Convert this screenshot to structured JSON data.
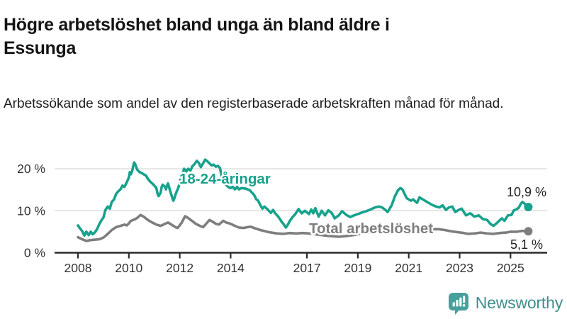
{
  "header": {
    "title": "Högre arbetslöshet bland unga än bland äldre i Essunga",
    "subtitle": "Arbetssökande som andel av den registerbaserade arbetskraften månad för månad."
  },
  "branding": {
    "label": "Newsworthy",
    "icon": "newsworthy-chart-bubble-icon",
    "icon_color": "#47a09c",
    "label_color": "#3e8e8b"
  },
  "chart_data": {
    "type": "line",
    "title": "Högre arbetslöshet bland unga än bland äldre i Essunga",
    "subtitle": "Arbetssökande som andel av den registerbaserade arbetskraften månad för månad.",
    "unit": "%",
    "grid": "horizontal",
    "grid_color": "#dcdcdc",
    "axis_color": "#2b2b2b",
    "tick_label_color": "#333333",
    "value_label_color": "#222222",
    "x_axis": {
      "range": [
        2008.0,
        2025.7
      ],
      "ticks": [
        2008,
        2010,
        2012,
        2014,
        2017,
        2019,
        2021,
        2023,
        2025
      ]
    },
    "y_axis": {
      "range": [
        0,
        23
      ],
      "ticks": [
        {
          "value": 0,
          "label": "0 %"
        },
        {
          "value": 10,
          "label": "10 %"
        },
        {
          "value": 20,
          "label": "20 %"
        }
      ]
    },
    "series": [
      {
        "id": "young",
        "name": "18-24-åringar",
        "color": "#17a28c",
        "end_value": 10.9,
        "end_label": "10,9 %",
        "points": [
          [
            2008.0,
            6.5
          ],
          [
            2008.08,
            5.8
          ],
          [
            2008.17,
            5.1
          ],
          [
            2008.25,
            4.1
          ],
          [
            2008.33,
            5.0
          ],
          [
            2008.42,
            4.2
          ],
          [
            2008.5,
            5.0
          ],
          [
            2008.58,
            4.4
          ],
          [
            2008.67,
            4.9
          ],
          [
            2008.75,
            5.6
          ],
          [
            2008.83,
            6.7
          ],
          [
            2008.92,
            7.7
          ],
          [
            2009.0,
            8.4
          ],
          [
            2009.08,
            10.2
          ],
          [
            2009.17,
            11.0
          ],
          [
            2009.25,
            10.5
          ],
          [
            2009.33,
            12.1
          ],
          [
            2009.42,
            12.7
          ],
          [
            2009.5,
            14.0
          ],
          [
            2009.58,
            14.6
          ],
          [
            2009.67,
            15.1
          ],
          [
            2009.75,
            16.0
          ],
          [
            2009.83,
            15.7
          ],
          [
            2009.92,
            16.8
          ],
          [
            2010.0,
            17.9
          ],
          [
            2010.04,
            19.2
          ],
          [
            2010.08,
            18.7
          ],
          [
            2010.13,
            19.5
          ],
          [
            2010.17,
            20.6
          ],
          [
            2010.21,
            21.5
          ],
          [
            2010.25,
            21.1
          ],
          [
            2010.33,
            19.8
          ],
          [
            2010.42,
            19.2
          ],
          [
            2010.5,
            19.0
          ],
          [
            2010.58,
            18.7
          ],
          [
            2010.67,
            18.4
          ],
          [
            2010.75,
            17.6
          ],
          [
            2010.83,
            17.0
          ],
          [
            2010.92,
            16.5
          ],
          [
            2011.0,
            16.0
          ],
          [
            2011.08,
            15.4
          ],
          [
            2011.13,
            14.0
          ],
          [
            2011.17,
            13.5
          ],
          [
            2011.25,
            14.3
          ],
          [
            2011.29,
            15.7
          ],
          [
            2011.33,
            16.2
          ],
          [
            2011.42,
            15.7
          ],
          [
            2011.46,
            15.1
          ],
          [
            2011.5,
            16.0
          ],
          [
            2011.54,
            16.5
          ],
          [
            2011.58,
            15.7
          ],
          [
            2011.63,
            14.6
          ],
          [
            2011.67,
            13.8
          ],
          [
            2011.71,
            13.0
          ],
          [
            2011.75,
            12.4
          ],
          [
            2011.79,
            13.0
          ],
          [
            2011.83,
            13.8
          ],
          [
            2011.88,
            14.6
          ],
          [
            2011.92,
            15.1
          ],
          [
            2011.96,
            15.8
          ],
          [
            2012.0,
            16.5
          ],
          [
            2012.04,
            17.9
          ],
          [
            2012.08,
            18.7
          ],
          [
            2012.13,
            19.2
          ],
          [
            2012.17,
            20.0
          ],
          [
            2012.21,
            19.7
          ],
          [
            2012.25,
            19.3
          ],
          [
            2012.33,
            20.0
          ],
          [
            2012.42,
            19.6
          ],
          [
            2012.5,
            20.6
          ],
          [
            2012.58,
            21.1
          ],
          [
            2012.67,
            21.9
          ],
          [
            2012.75,
            21.4
          ],
          [
            2012.83,
            20.4
          ],
          [
            2012.92,
            21.3
          ],
          [
            2013.0,
            22.2
          ],
          [
            2013.08,
            21.8
          ],
          [
            2013.17,
            21.3
          ],
          [
            2013.25,
            20.8
          ],
          [
            2013.33,
            21.0
          ],
          [
            2013.42,
            20.5
          ],
          [
            2013.5,
            20.7
          ],
          [
            2013.58,
            20.2
          ],
          [
            2013.67,
            17.6
          ],
          [
            2013.75,
            16.8
          ],
          [
            2013.83,
            16.1
          ],
          [
            2013.92,
            15.6
          ],
          [
            2014.0,
            15.4
          ],
          [
            2014.08,
            15.7
          ],
          [
            2014.17,
            15.1
          ],
          [
            2014.25,
            15.7
          ],
          [
            2014.33,
            15.1
          ],
          [
            2014.42,
            15.4
          ],
          [
            2014.58,
            15.3
          ],
          [
            2014.75,
            14.9
          ],
          [
            2014.92,
            13.8
          ],
          [
            2015.0,
            12.8
          ],
          [
            2015.08,
            12.4
          ],
          [
            2015.17,
            11.3
          ],
          [
            2015.25,
            10.5
          ],
          [
            2015.33,
            11.0
          ],
          [
            2015.42,
            10.5
          ],
          [
            2015.5,
            10.0
          ],
          [
            2015.58,
            9.5
          ],
          [
            2015.67,
            10.2
          ],
          [
            2015.75,
            9.4
          ],
          [
            2015.83,
            8.9
          ],
          [
            2015.92,
            8.2
          ],
          [
            2016.0,
            7.4
          ],
          [
            2016.08,
            6.8
          ],
          [
            2016.17,
            6.0
          ],
          [
            2016.25,
            6.7
          ],
          [
            2016.33,
            7.6
          ],
          [
            2016.42,
            8.4
          ],
          [
            2016.54,
            9.2
          ],
          [
            2016.67,
            10.4
          ],
          [
            2016.79,
            9.4
          ],
          [
            2016.92,
            10.0
          ],
          [
            2017.08,
            9.2
          ],
          [
            2017.17,
            10.3
          ],
          [
            2017.25,
            9.4
          ],
          [
            2017.33,
            10.6
          ],
          [
            2017.46,
            8.6
          ],
          [
            2017.58,
            10.0
          ],
          [
            2017.71,
            8.9
          ],
          [
            2017.84,
            10.1
          ],
          [
            2017.97,
            9.5
          ],
          [
            2018.09,
            8.2
          ],
          [
            2018.25,
            8.9
          ],
          [
            2018.38,
            9.9
          ],
          [
            2018.55,
            9.0
          ],
          [
            2018.7,
            8.5
          ],
          [
            2018.85,
            8.9
          ],
          [
            2019.0,
            9.2
          ],
          [
            2019.17,
            9.6
          ],
          [
            2019.33,
            9.9
          ],
          [
            2019.5,
            10.3
          ],
          [
            2019.67,
            10.8
          ],
          [
            2019.83,
            11.0
          ],
          [
            2019.95,
            10.8
          ],
          [
            2020.08,
            10.2
          ],
          [
            2020.17,
            9.7
          ],
          [
            2020.33,
            11.3
          ],
          [
            2020.46,
            13.5
          ],
          [
            2020.58,
            14.9
          ],
          [
            2020.67,
            15.4
          ],
          [
            2020.75,
            15.1
          ],
          [
            2020.92,
            13.0
          ],
          [
            2021.08,
            12.4
          ],
          [
            2021.17,
            12.7
          ],
          [
            2021.33,
            11.9
          ],
          [
            2021.42,
            13.2
          ],
          [
            2021.58,
            12.6
          ],
          [
            2021.75,
            12.0
          ],
          [
            2021.92,
            11.4
          ],
          [
            2022.08,
            11.0
          ],
          [
            2022.21,
            10.8
          ],
          [
            2022.33,
            11.3
          ],
          [
            2022.46,
            10.2
          ],
          [
            2022.58,
            10.8
          ],
          [
            2022.71,
            11.0
          ],
          [
            2022.83,
            9.7
          ],
          [
            2022.96,
            10.2
          ],
          [
            2023.08,
            10.5
          ],
          [
            2023.25,
            8.9
          ],
          [
            2023.42,
            9.4
          ],
          [
            2023.58,
            8.6
          ],
          [
            2023.75,
            8.9
          ],
          [
            2023.92,
            8.0
          ],
          [
            2024.08,
            7.8
          ],
          [
            2024.21,
            6.9
          ],
          [
            2024.33,
            6.4
          ],
          [
            2024.43,
            6.9
          ],
          [
            2024.57,
            7.7
          ],
          [
            2024.66,
            8.2
          ],
          [
            2024.76,
            7.6
          ],
          [
            2024.9,
            8.9
          ],
          [
            2025.04,
            9.0
          ],
          [
            2025.13,
            10.1
          ],
          [
            2025.22,
            10.3
          ],
          [
            2025.32,
            10.7
          ],
          [
            2025.41,
            11.7
          ],
          [
            2025.47,
            12.1
          ],
          [
            2025.55,
            11.7
          ],
          [
            2025.7,
            10.9
          ]
        ]
      },
      {
        "id": "total",
        "name": "Total arbetslöshet",
        "color": "#7e7e7e",
        "end_value": 5.1,
        "end_label": "5,1 %",
        "points": [
          [
            2008.0,
            3.7
          ],
          [
            2008.17,
            3.2
          ],
          [
            2008.33,
            2.8
          ],
          [
            2008.5,
            3.0
          ],
          [
            2008.67,
            3.1
          ],
          [
            2008.83,
            3.2
          ],
          [
            2009.0,
            3.6
          ],
          [
            2009.17,
            4.5
          ],
          [
            2009.33,
            5.4
          ],
          [
            2009.5,
            6.1
          ],
          [
            2009.67,
            6.4
          ],
          [
            2009.83,
            6.7
          ],
          [
            2009.92,
            6.5
          ],
          [
            2010.0,
            7.0
          ],
          [
            2010.08,
            7.6
          ],
          [
            2010.17,
            7.8
          ],
          [
            2010.25,
            8.0
          ],
          [
            2010.33,
            8.3
          ],
          [
            2010.46,
            9.0
          ],
          [
            2010.58,
            8.6
          ],
          [
            2010.75,
            7.8
          ],
          [
            2010.92,
            7.2
          ],
          [
            2011.08,
            6.7
          ],
          [
            2011.25,
            6.4
          ],
          [
            2011.42,
            6.9
          ],
          [
            2011.54,
            7.2
          ],
          [
            2011.67,
            6.7
          ],
          [
            2011.83,
            6.1
          ],
          [
            2011.92,
            5.9
          ],
          [
            2012.08,
            7.2
          ],
          [
            2012.21,
            8.7
          ],
          [
            2012.33,
            8.3
          ],
          [
            2012.5,
            7.5
          ],
          [
            2012.63,
            6.9
          ],
          [
            2012.79,
            6.4
          ],
          [
            2012.92,
            6.1
          ],
          [
            2013.08,
            7.2
          ],
          [
            2013.17,
            7.8
          ],
          [
            2013.29,
            7.4
          ],
          [
            2013.42,
            6.9
          ],
          [
            2013.54,
            6.7
          ],
          [
            2013.71,
            7.6
          ],
          [
            2013.83,
            7.2
          ],
          [
            2014.0,
            6.9
          ],
          [
            2014.17,
            6.4
          ],
          [
            2014.33,
            6.0
          ],
          [
            2014.5,
            5.9
          ],
          [
            2014.67,
            6.1
          ],
          [
            2014.79,
            6.2
          ],
          [
            2014.92,
            5.9
          ],
          [
            2015.17,
            5.4
          ],
          [
            2015.5,
            4.9
          ],
          [
            2015.83,
            4.6
          ],
          [
            2016.08,
            4.5
          ],
          [
            2016.33,
            4.7
          ],
          [
            2016.58,
            4.6
          ],
          [
            2016.83,
            4.7
          ],
          [
            2017.08,
            4.6
          ],
          [
            2017.33,
            4.4
          ],
          [
            2017.58,
            4.2
          ],
          [
            2017.83,
            4.0
          ],
          [
            2018.08,
            3.9
          ],
          [
            2018.25,
            3.8
          ],
          [
            2018.42,
            3.9
          ],
          [
            2018.58,
            4.0
          ],
          [
            2018.83,
            4.2
          ],
          [
            2019.08,
            4.5
          ],
          [
            2019.42,
            4.8
          ],
          [
            2019.75,
            5.1
          ],
          [
            2020.0,
            5.3
          ],
          [
            2020.25,
            5.9
          ],
          [
            2020.5,
            6.1
          ],
          [
            2020.67,
            6.2
          ],
          [
            2020.92,
            6.1
          ],
          [
            2021.17,
            5.9
          ],
          [
            2021.42,
            5.7
          ],
          [
            2021.58,
            5.9
          ],
          [
            2021.83,
            5.6
          ],
          [
            2022.17,
            5.6
          ],
          [
            2022.42,
            5.4
          ],
          [
            2022.67,
            5.1
          ],
          [
            2022.92,
            4.9
          ],
          [
            2023.17,
            4.7
          ],
          [
            2023.33,
            4.5
          ],
          [
            2023.58,
            4.6
          ],
          [
            2023.83,
            4.8
          ],
          [
            2024.08,
            4.6
          ],
          [
            2024.33,
            4.5
          ],
          [
            2024.58,
            4.7
          ],
          [
            2024.83,
            4.8
          ],
          [
            2025.0,
            5.0
          ],
          [
            2025.25,
            5.0
          ],
          [
            2025.45,
            5.2
          ],
          [
            2025.7,
            5.1
          ]
        ]
      }
    ]
  }
}
